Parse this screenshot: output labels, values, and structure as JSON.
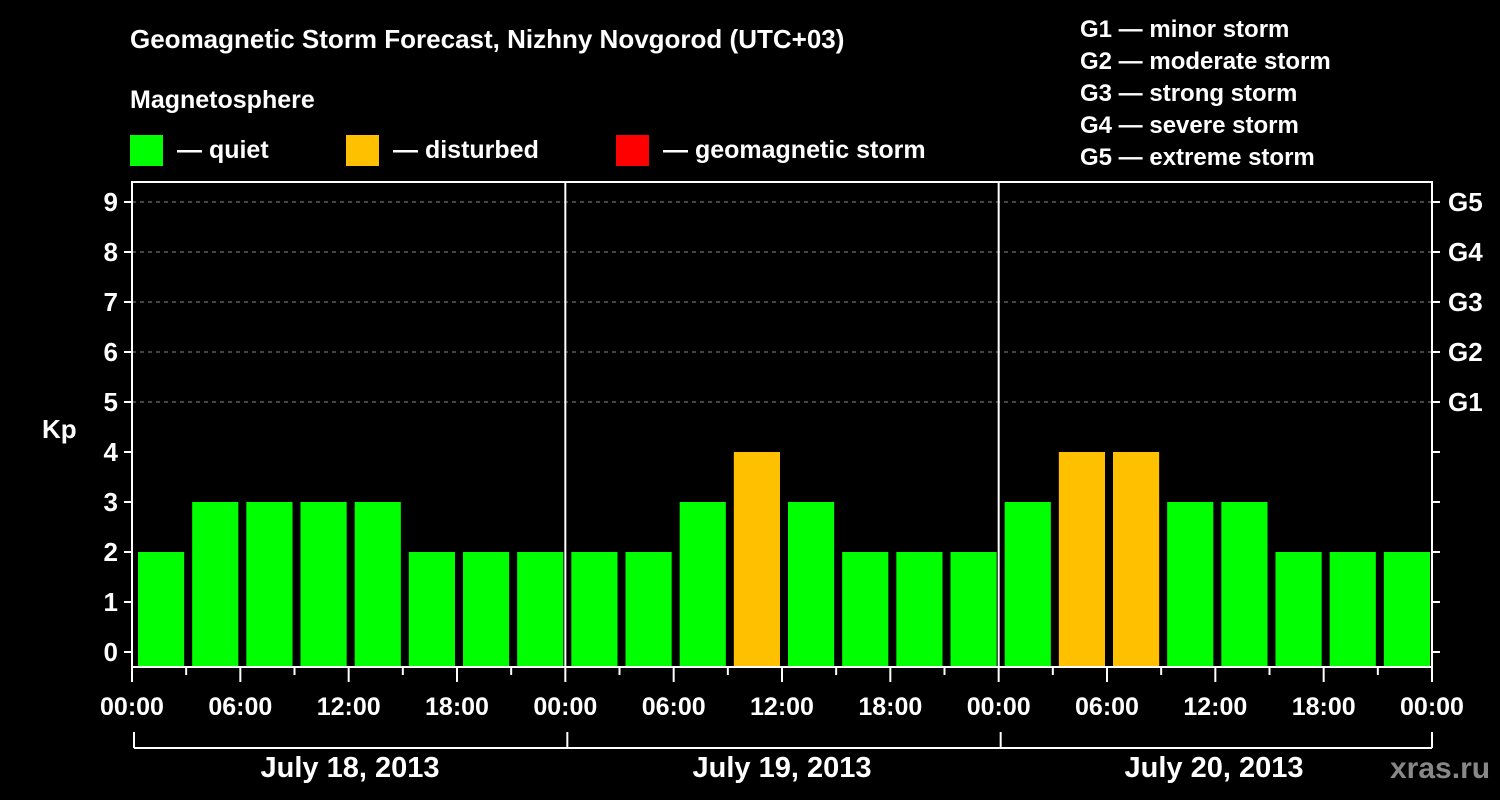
{
  "header": {
    "title": "Geomagnetic Storm Forecast, Nizhny Novgorod (UTC+03)",
    "subtitle": "Magnetosphere"
  },
  "legend": [
    {
      "label": "— quiet",
      "color": "#00FF00"
    },
    {
      "label": "— disturbed",
      "color": "#FFC000"
    },
    {
      "label": "— geomagnetic storm",
      "color": "#FF0000"
    }
  ],
  "storm_scale": [
    "G1 — minor storm",
    "G2 — moderate storm",
    "G3 — strong storm",
    "G4 — severe storm",
    "G5 — extreme storm"
  ],
  "watermark": "xras.ru",
  "chart_data": {
    "type": "bar",
    "title": "Geomagnetic Storm Forecast, Nizhny Novgorod (UTC+03)",
    "subtitle": "Magnetosphere",
    "xlabel": "",
    "ylabel": "Kp",
    "ylim": [
      0,
      9
    ],
    "yticks": [
      0,
      1,
      2,
      3,
      4,
      5,
      6,
      7,
      8,
      9
    ],
    "y2_ticks": [
      {
        "value": 5,
        "label": "G1"
      },
      {
        "value": 6,
        "label": "G2"
      },
      {
        "value": 7,
        "label": "G3"
      },
      {
        "value": 8,
        "label": "G4"
      },
      {
        "value": 9,
        "label": "G5"
      }
    ],
    "grid": "dashed horizontal at Kp 5-9",
    "x_tick_labels": [
      "00:00",
      "06:00",
      "12:00",
      "18:00",
      "00:00",
      "06:00",
      "12:00",
      "18:00",
      "00:00",
      "06:00",
      "12:00",
      "18:00",
      "00:00"
    ],
    "dates": [
      "July 18, 2013",
      "July 19, 2013",
      "July 20, 2013"
    ],
    "categories": [
      "Jul18 00-03",
      "Jul18 03-06",
      "Jul18 06-09",
      "Jul18 09-12",
      "Jul18 12-15",
      "Jul18 15-18",
      "Jul18 18-21",
      "Jul18 21-24",
      "Jul19 00-03",
      "Jul19 03-06",
      "Jul19 06-09",
      "Jul19 09-12",
      "Jul19 12-15",
      "Jul19 15-18",
      "Jul19 18-21",
      "Jul19 21-24",
      "Jul20 00-03",
      "Jul20 03-06",
      "Jul20 06-09",
      "Jul20 09-12",
      "Jul20 12-15",
      "Jul20 15-18",
      "Jul20 18-21",
      "Jul20 21-24"
    ],
    "values": [
      2,
      3,
      3,
      3,
      3,
      2,
      2,
      2,
      2,
      2,
      3,
      4,
      3,
      2,
      2,
      2,
      3,
      4,
      4,
      3,
      3,
      2,
      2,
      2
    ],
    "status": [
      "quiet",
      "quiet",
      "quiet",
      "quiet",
      "quiet",
      "quiet",
      "quiet",
      "quiet",
      "quiet",
      "quiet",
      "quiet",
      "disturbed",
      "quiet",
      "quiet",
      "quiet",
      "quiet",
      "quiet",
      "disturbed",
      "disturbed",
      "quiet",
      "quiet",
      "quiet",
      "quiet",
      "quiet"
    ],
    "legend": [
      "quiet",
      "disturbed",
      "geomagnetic storm"
    ],
    "legend_position": "top"
  }
}
